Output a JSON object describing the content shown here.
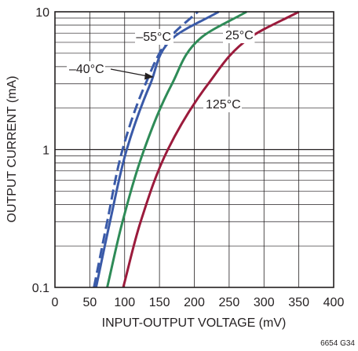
{
  "chart_data": {
    "type": "line",
    "xlabel": "INPUT-OUTPUT VOLTAGE (mV)",
    "ylabel": "OUTPUT CURRENT (mA)",
    "xlim": [
      0,
      400
    ],
    "ylim": [
      0.1,
      10
    ],
    "y_scale": "log",
    "grid": true,
    "x_ticks": [
      "0",
      "50",
      "100",
      "150",
      "200",
      "250",
      "300",
      "350",
      "400"
    ],
    "y_ticks": [
      "0.1",
      "1",
      "10"
    ],
    "series": [
      {
        "name": "–55°C",
        "color": "#3a5aa8",
        "dashed": true,
        "points": [
          [
            56,
            0.1
          ],
          [
            75,
            0.3
          ],
          [
            97,
            1
          ],
          [
            130,
            3
          ],
          [
            165,
            6.5
          ],
          [
            205,
            10
          ]
        ]
      },
      {
        "name": "–40°C",
        "color": "#3a5aa8",
        "dashed": false,
        "points": [
          [
            59,
            0.1
          ],
          [
            79,
            0.3
          ],
          [
            103,
            1
          ],
          [
            137,
            3
          ],
          [
            170,
            6.5
          ],
          [
            235,
            10
          ]
        ]
      },
      {
        "name": "25°C",
        "color": "#2e8b57",
        "dashed": false,
        "points": [
          [
            75,
            0.1
          ],
          [
            97,
            0.3
          ],
          [
            128,
            1
          ],
          [
            168,
            3
          ],
          [
            210,
            6.5
          ],
          [
            275,
            10
          ]
        ]
      },
      {
        "name": "125°C",
        "color": "#9b1b3c",
        "dashed": false,
        "points": [
          [
            98,
            0.1
          ],
          [
            123,
            0.3
          ],
          [
            162,
            1
          ],
          [
            220,
            3
          ],
          [
            280,
            6.5
          ],
          [
            350,
            10
          ]
        ]
      }
    ],
    "annotations": [
      {
        "text": "–55°C",
        "series": "–55°C"
      },
      {
        "text": "–40°C",
        "series": "–40°C"
      },
      {
        "text": "25°C",
        "series": "25°C"
      },
      {
        "text": "125°C",
        "series": "125°C"
      }
    ]
  },
  "figure_code": "6654 G34"
}
